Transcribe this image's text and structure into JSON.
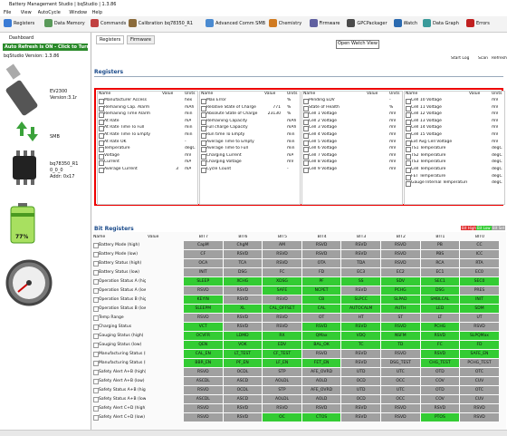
{
  "window": {
    "title": "Battery Management Studio | bqStudio | 1.3.86",
    "menu": [
      "File",
      "View",
      "AutoCycle",
      "Window",
      "Help"
    ],
    "toolbar": [
      "Registers",
      "Data Memory",
      "Commands",
      "Calibration bq78350_R1",
      "Advanced Comm SMB",
      "Chemistry",
      "Firmware",
      "GPCPackager",
      "Watch",
      "Data Graph",
      "Errors"
    ],
    "tooltip": "Open Watch View"
  },
  "dashboard": {
    "tab": "Dashboard",
    "auto_refresh": "Auto Refresh is ON - Click to Turn OFF",
    "version": "bqStudio Version: 1.3.86",
    "adapter": "EV2300",
    "adapter_version": "Version:3.1r",
    "bus": "SMB",
    "device": "bq78350_R1",
    "device_version": "0_0_0",
    "device_addr": "Addr: 0x17",
    "charge": "77%"
  },
  "tabs": [
    "Registers",
    "Firmware"
  ],
  "registers": {
    "title": "Registers",
    "actions": [
      "Start Log",
      "Scan",
      "Refresh"
    ],
    "columns": [
      "Name",
      "Value",
      "Units"
    ],
    "tables": [
      [
        {
          "name": "Manufacturer Access",
          "units": "hex"
        },
        {
          "name": "Remaining Cap. Alarm",
          "units": "mAh"
        },
        {
          "name": "Remaining Time Alarm",
          "units": "min"
        },
        {
          "name": "At Rate",
          "units": "mA"
        },
        {
          "name": "At Rate Time To Full",
          "units": "min"
        },
        {
          "name": "At Rate Time To Empty",
          "units": "min"
        },
        {
          "name": "At Rate OK",
          "units": "-"
        },
        {
          "name": "Temperature",
          "units": "degC"
        },
        {
          "name": "Voltage",
          "units": "mV"
        },
        {
          "name": "Current",
          "units": "mA"
        },
        {
          "name": "Average Current",
          "value": "3",
          "units": "mA"
        }
      ],
      [
        {
          "name": "Max Error",
          "units": "%"
        },
        {
          "name": "Relative State of Charge",
          "value": "771",
          "units": "%"
        },
        {
          "name": "Absolute State of Charge",
          "value": "23130",
          "units": "%"
        },
        {
          "name": "Remaining Capacity",
          "units": "mAh"
        },
        {
          "name": "Full charge Capacity",
          "units": "mAh"
        },
        {
          "name": "Run time To Empty",
          "units": "min"
        },
        {
          "name": "Average Time to Empty",
          "units": "min"
        },
        {
          "name": "Average Time to Full",
          "units": "min"
        },
        {
          "name": "Charging Current",
          "units": "mA"
        },
        {
          "name": "Charging Voltage",
          "units": "mV"
        },
        {
          "name": "Cycle Count",
          "units": "-"
        }
      ],
      [
        {
          "name": "Pending EDV",
          "units": "-"
        },
        {
          "name": "State of Health",
          "units": "%"
        },
        {
          "name": "Cell 1 Voltage",
          "units": "mV"
        },
        {
          "name": "Cell 2 Voltage",
          "units": "mV"
        },
        {
          "name": "Cell 3 Voltage",
          "units": "mV"
        },
        {
          "name": "Cell 4 Voltage",
          "units": "mV"
        },
        {
          "name": "Cell 5 Voltage",
          "units": "mV"
        },
        {
          "name": "Cell 6 Voltage",
          "units": "mV"
        },
        {
          "name": "Cell 7 Voltage",
          "units": "mV"
        },
        {
          "name": "Cell 8 Voltage",
          "units": "mV"
        },
        {
          "name": "Cell 9 Voltage",
          "units": "mV"
        }
      ],
      [
        {
          "name": "Cell 10 Voltage",
          "units": "mV"
        },
        {
          "name": "Cell 11 Voltage",
          "units": "mV"
        },
        {
          "name": "Cell 12 Voltage",
          "units": "mV"
        },
        {
          "name": "Cell 13 Voltage",
          "units": "mV"
        },
        {
          "name": "Cell 14 Voltage",
          "units": "mV"
        },
        {
          "name": "Cell 15 Voltage",
          "units": "mV"
        },
        {
          "name": "Ext Avg Cell Voltage",
          "units": "mV"
        },
        {
          "name": "TS1 Temperature",
          "units": "degC"
        },
        {
          "name": "TS2 Temperature",
          "units": "degC"
        },
        {
          "name": "TS3 Temperature",
          "units": "degC"
        },
        {
          "name": "Cell Temperature",
          "units": "degC"
        },
        {
          "name": "FET Temperature",
          "units": "degC"
        },
        {
          "name": "Gauge Internal Temperature",
          "units": "degC"
        }
      ]
    ]
  },
  "bit_registers": {
    "title": "Bit Registers",
    "legend": [
      {
        "label": "Bit High",
        "color": "#e03030"
      },
      {
        "label": "Bit Low",
        "color": "#33cc33"
      },
      {
        "label": "Bit Set",
        "color": "#a0a0a0"
      }
    ],
    "columns": [
      "Name",
      "Value",
      "BIT7",
      "BIT6",
      "BIT5",
      "BIT4",
      "BIT3",
      "BIT2",
      "BIT1",
      "BIT0"
    ],
    "rows": [
      {
        "name": "Battery Mode (high)",
        "bits": [
          "CapM",
          "ChgM",
          "AM",
          "RSVD",
          "RSVD",
          "RSVD",
          "PB",
          "CC"
        ],
        "on": [
          0,
          0,
          0,
          0,
          0,
          0,
          0,
          0
        ]
      },
      {
        "name": "Battery Mode (low)",
        "bits": [
          "CF",
          "RSVD",
          "RSVD",
          "RSVD",
          "RSVD",
          "RSVD",
          "PBS",
          "ICC"
        ],
        "on": [
          0,
          0,
          0,
          0,
          0,
          0,
          0,
          0
        ]
      },
      {
        "name": "Battery Status (high)",
        "bits": [
          "OCA",
          "TCA",
          "RSVD",
          "OTA",
          "TDA",
          "RSVD",
          "RCA",
          "RTA"
        ],
        "on": [
          0,
          0,
          0,
          0,
          0,
          0,
          0,
          0
        ]
      },
      {
        "name": "Battery Status (low)",
        "bits": [
          "INIT",
          "DSG",
          "FC",
          "FD",
          "EC3",
          "EC2",
          "EC1",
          "EC0"
        ],
        "on": [
          0,
          0,
          0,
          0,
          0,
          0,
          0,
          0
        ]
      },
      {
        "name": "Operation Status A (high)",
        "bits": [
          "SLEEP",
          "XCHG",
          "XDSG",
          "PF",
          "SS",
          "SDV",
          "SEC1",
          "SEC0"
        ],
        "on": [
          1,
          1,
          1,
          1,
          1,
          1,
          1,
          1
        ]
      },
      {
        "name": "Operation Status A (low)",
        "bits": [
          "RSVD",
          "RSVD",
          "SAFE",
          "NCPET",
          "RSVD",
          "PCHG",
          "DSG",
          "PRES"
        ],
        "on": [
          0,
          0,
          1,
          1,
          0,
          1,
          1,
          0
        ]
      },
      {
        "name": "Operation Status B (high)",
        "bits": [
          "KEYIN",
          "RSVD",
          "RSVD",
          "CB",
          "SLPCC",
          "SLPAD",
          "SMBLCAL",
          "INIT"
        ],
        "on": [
          1,
          0,
          0,
          1,
          1,
          1,
          1,
          1
        ]
      },
      {
        "name": "Operation Status B (low)",
        "bits": [
          "SLEEPM",
          "XL",
          "CAL_OFFSET",
          "CAL",
          "AUTOCALM",
          "AUTH",
          "LED",
          "SDM"
        ],
        "on": [
          1,
          1,
          1,
          1,
          1,
          1,
          1,
          1
        ]
      },
      {
        "name": "Temp Range",
        "bits": [
          "RSVD",
          "RSVD",
          "RSVD",
          "OT",
          "HT",
          "ST",
          "LT",
          "UT"
        ],
        "on": [
          0,
          0,
          0,
          0,
          0,
          0,
          0,
          0
        ]
      },
      {
        "name": "Charging Status",
        "bits": [
          "VCT",
          "RSVD",
          "RSVD",
          "RSVD",
          "RSVD",
          "RSVD",
          "PCHG",
          "RSVD"
        ],
        "on": [
          1,
          0,
          0,
          1,
          1,
          1,
          1,
          0
        ]
      },
      {
        "name": "Gauging Status (high)",
        "bits": [
          "OCVFR",
          "LDMD",
          "RX",
          "QMax",
          "VDQ",
          "NSFM",
          "RSVD",
          "SLPQMax"
        ],
        "on": [
          1,
          1,
          1,
          1,
          1,
          1,
          1,
          1
        ]
      },
      {
        "name": "Gauging Status (low)",
        "bits": [
          "QEN",
          "VOK",
          "EDV",
          "BAL_OK",
          "TC",
          "TD",
          "FC",
          "FD"
        ],
        "on": [
          1,
          1,
          1,
          1,
          1,
          1,
          1,
          1
        ]
      },
      {
        "name": "Manufacturing Status (high)",
        "bits": [
          "CAL_EN",
          "LT_TEST",
          "CF_TEST",
          "RSVD",
          "RSVD",
          "RSVD",
          "RSVD",
          "SAFE_EN"
        ],
        "on": [
          1,
          1,
          1,
          0,
          0,
          0,
          1,
          1
        ]
      },
      {
        "name": "Manufacturing Status (low)",
        "bits": [
          "BBR_EN",
          "PF_EN",
          "LF_EN",
          "FET_EN",
          "RSVD",
          "DSG_TEST",
          "CHG_TEST",
          "PCHG_TEST"
        ],
        "on": [
          1,
          1,
          1,
          1,
          0,
          0,
          1,
          0
        ]
      },
      {
        "name": "Safety Alert A+B (high)",
        "bits": [
          "RSVD",
          "OCDL",
          "STP",
          "AFE_OVRD",
          "UTD",
          "UTC",
          "OTD",
          "OTC"
        ],
        "on": [
          0,
          0,
          0,
          0,
          0,
          0,
          0,
          0
        ]
      },
      {
        "name": "Safety Alert A+B (low)",
        "bits": [
          "ASCDL",
          "ASCD",
          "AOLDL",
          "AOLD",
          "OCD",
          "OCC",
          "COV",
          "CUV"
        ],
        "on": [
          0,
          0,
          0,
          0,
          0,
          0,
          0,
          0
        ]
      },
      {
        "name": "Safety Status A+B (high)",
        "bits": [
          "RSVD",
          "OCDL",
          "STP",
          "AFE_OVRD",
          "UTD",
          "UTC",
          "OTD",
          "OTC"
        ],
        "on": [
          0,
          0,
          0,
          0,
          0,
          0,
          0,
          0
        ]
      },
      {
        "name": "Safety Status A+B (low)",
        "bits": [
          "ASCDL",
          "ASCD",
          "AOLDL",
          "AOLD",
          "OCD",
          "OCC",
          "COV",
          "CUV"
        ],
        "on": [
          0,
          0,
          0,
          0,
          0,
          0,
          0,
          0
        ]
      },
      {
        "name": "Safety Alert C+D (high)",
        "bits": [
          "RSVD",
          "RSVD",
          "RSVD",
          "RSVD",
          "RSVD",
          "RSVD",
          "RSVD",
          "RSVD"
        ],
        "on": [
          0,
          0,
          0,
          0,
          0,
          0,
          0,
          0
        ]
      },
      {
        "name": "Safety Alert C+D (low)",
        "bits": [
          "RSVD",
          "RSVD",
          "OC",
          "CTOS",
          "RSVD",
          "RSVD",
          "PTOS",
          "RSVD"
        ],
        "on": [
          0,
          0,
          1,
          1,
          0,
          0,
          1,
          0
        ]
      }
    ]
  }
}
